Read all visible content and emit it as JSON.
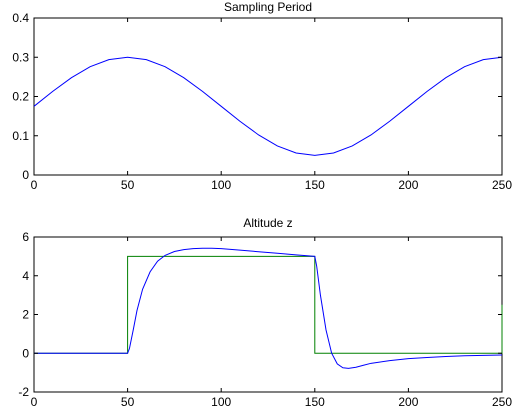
{
  "chart_data": [
    {
      "type": "line",
      "title": "Sampling Period",
      "xlabel": "",
      "ylabel": "",
      "xlim": [
        0,
        250
      ],
      "ylim": [
        0,
        0.4
      ],
      "xticks": [
        0,
        50,
        100,
        150,
        200,
        250
      ],
      "yticks": [
        0,
        0.1,
        0.2,
        0.3,
        0.4
      ],
      "xtick_labels": [
        "0",
        "50",
        "100",
        "150",
        "200",
        "250"
      ],
      "ytick_labels": [
        "0",
        "0.1",
        "0.2",
        "0.3",
        "0.4"
      ],
      "grid": false,
      "series": [
        {
          "color": "#0000ff",
          "x": [
            0,
            10,
            20,
            30,
            40,
            50,
            60,
            70,
            80,
            90,
            100,
            110,
            120,
            130,
            140,
            150,
            160,
            170,
            180,
            190,
            200,
            210,
            220,
            230,
            240,
            250
          ],
          "y": [
            0.175,
            0.213,
            0.248,
            0.276,
            0.294,
            0.3,
            0.294,
            0.276,
            0.248,
            0.213,
            0.175,
            0.137,
            0.102,
            0.074,
            0.056,
            0.05,
            0.056,
            0.074,
            0.102,
            0.137,
            0.175,
            0.213,
            0.248,
            0.276,
            0.294,
            0.3
          ]
        }
      ]
    },
    {
      "type": "line",
      "title": "Altitude z",
      "xlabel": "",
      "ylabel": "",
      "xlim": [
        0,
        250
      ],
      "ylim": [
        -2,
        6
      ],
      "xticks": [
        0,
        50,
        100,
        150,
        200,
        250
      ],
      "yticks": [
        -2,
        0,
        2,
        4,
        6
      ],
      "xtick_labels": [
        "0",
        "50",
        "100",
        "150",
        "200",
        "250"
      ],
      "ytick_labels": [
        "-2",
        "0",
        "2",
        "4",
        "6"
      ],
      "grid": false,
      "series": [
        {
          "color": "#008000",
          "x": [
            0,
            50,
            50,
            150,
            150,
            250,
            250
          ],
          "y": [
            0,
            0,
            5,
            5,
            0,
            0,
            2.5
          ]
        },
        {
          "color": "#0000ff",
          "x": [
            0,
            50,
            51,
            53,
            55,
            58,
            62,
            66,
            70,
            75,
            80,
            85,
            90,
            95,
            100,
            110,
            120,
            130,
            140,
            150,
            151,
            153,
            156,
            159,
            162,
            165,
            168,
            172,
            176,
            180,
            190,
            200,
            210,
            220,
            230,
            240,
            250
          ],
          "y": [
            0,
            0,
            0.25,
            1.2,
            2.2,
            3.3,
            4.2,
            4.75,
            5.05,
            5.25,
            5.35,
            5.4,
            5.42,
            5.42,
            5.4,
            5.32,
            5.24,
            5.16,
            5.08,
            5.0,
            4.5,
            3.0,
            1.2,
            0.0,
            -0.55,
            -0.75,
            -0.78,
            -0.72,
            -0.62,
            -0.52,
            -0.38,
            -0.28,
            -0.22,
            -0.17,
            -0.13,
            -0.11,
            -0.09
          ]
        }
      ]
    }
  ]
}
